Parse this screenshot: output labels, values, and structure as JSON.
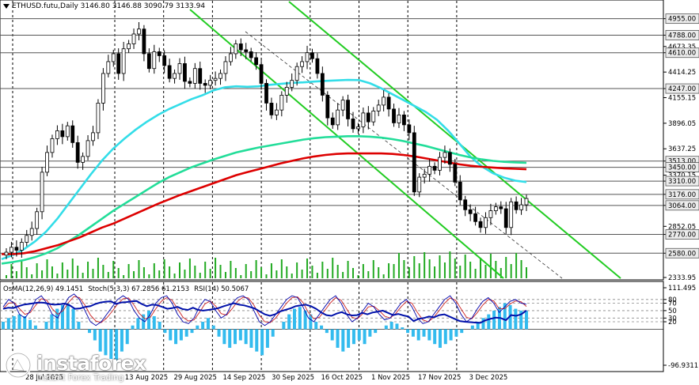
{
  "header": {
    "symbol_text": "ETHUSD.futu,Daily  3146.80 3146.88 3090.79 3133.94"
  },
  "oscillators": {
    "osma_label": "OsMA(12,26,9) 49.1451",
    "stoch_label": "Stoch(5,3,3) 67.2856 61.2153",
    "rsi_label": "RSI(14) 50.5067"
  },
  "logo": {
    "brand": "instaforex",
    "slogan": "Instant Forex Trading",
    "icon": "instaforex-logo-icon"
  },
  "colors": {
    "bull_candle": "#000000",
    "bear_candle": "#000000",
    "ema_fast": "#33dde8",
    "ema_mid": "#22dd99",
    "ema_slow": "#dd0000",
    "channel": "#22cc22",
    "volume": "#22aa22",
    "osma_hist": "#33bbee",
    "stoch_main": "#0000aa",
    "stoch_signal": "#cc2222",
    "rsi": "#0011aa"
  },
  "chart_data": {
    "type": "candlestick",
    "symbol": "ETHUSD.futu",
    "timeframe": "Daily",
    "ohlc_last": {
      "open": 3146.8,
      "high": 3146.88,
      "low": 3090.79,
      "close": 3133.94
    },
    "ylim": [
      2333.95,
      5000
    ],
    "y_tick_labels": [
      "4955.00",
      "4788.00",
      "4673.35",
      "4610.00",
      "4414.25",
      "4247.00",
      "4155.15",
      "3896.05",
      "3637.25",
      "3513.00",
      "3450.00",
      "3370.15",
      "3310.00",
      "3176.00",
      "3064.00",
      "2852.05",
      "2770.00",
      "2580.00",
      "2333.95"
    ],
    "y_tick_values": [
      4955,
      4788,
      4673.35,
      4610,
      4414.25,
      4247,
      4155.15,
      3896.05,
      3637.25,
      3513,
      3450,
      3370.15,
      3310,
      3176,
      3064,
      2852.05,
      2770,
      2580,
      2333.95
    ],
    "level_lines": [
      4955,
      4788,
      4610,
      4247,
      3513,
      3450,
      3310,
      3176,
      3064,
      2770,
      2580
    ],
    "x_labels": [
      "28 Jul 2025",
      "13 Aug 2025",
      "29 Aug 2025",
      "14 Sep 2025",
      "30 Sep 2025",
      "16 Oct 2025",
      "1 Nov 2025",
      "17 Nov 2025",
      "3 Dec 2025"
    ],
    "closes": [
      2590,
      2640,
      2610,
      2690,
      2760,
      2830,
      3000,
      3400,
      3600,
      3740,
      3820,
      3760,
      3870,
      3700,
      3500,
      3560,
      3720,
      3800,
      4100,
      4400,
      4520,
      4600,
      4400,
      4650,
      4700,
      4800,
      4850,
      4600,
      4450,
      4620,
      4580,
      4480,
      4350,
      4400,
      4500,
      4320,
      4300,
      4450,
      4300,
      4280,
      4330,
      4350,
      4400,
      4520,
      4600,
      4700,
      4640,
      4620,
      4560,
      4490,
      4300,
      4100,
      3980,
      4030,
      4180,
      4260,
      4330,
      4470,
      4520,
      4610,
      4550,
      4400,
      4180,
      3950,
      3880,
      4030,
      4130,
      3940,
      3840,
      3860,
      4000,
      3910,
      4020,
      4080,
      4160,
      4040,
      3900,
      3980,
      3880,
      3800,
      3200,
      3350,
      3380,
      3460,
      3420,
      3550,
      3600,
      3480,
      3300,
      3120,
      3020,
      2980,
      2900,
      2840,
      2940,
      3010,
      3050,
      3030,
      2840,
      3100,
      3020,
      3070,
      3133.94
    ],
    "series": [
      {
        "name": "",
        "kind": "ema_fast",
        "values": [
          2520,
          2560,
          2620,
          2700,
          2800,
          2930,
          3080,
          3230,
          3380,
          3520,
          3640,
          3740,
          3830,
          3910,
          3980,
          4040,
          4090,
          4140,
          4180,
          4230,
          4260,
          4270,
          4265,
          4270,
          4285,
          4295,
          4305,
          4310,
          4318,
          4325,
          4330,
          4335,
          4333,
          4300,
          4250,
          4190,
          4130,
          4070,
          4010,
          3930,
          3820,
          3690,
          3555,
          3460,
          3390,
          3345,
          3315,
          3300
        ]
      },
      {
        "name": "",
        "kind": "ema_mid",
        "values": [
          2475,
          2490,
          2510,
          2540,
          2580,
          2630,
          2700,
          2770,
          2850,
          2930,
          3010,
          3080,
          3150,
          3220,
          3290,
          3350,
          3400,
          3450,
          3490,
          3530,
          3565,
          3600,
          3625,
          3650,
          3670,
          3690,
          3710,
          3730,
          3745,
          3755,
          3760,
          3765,
          3765,
          3760,
          3750,
          3735,
          3715,
          3690,
          3665,
          3635,
          3605,
          3575,
          3550,
          3530,
          3515,
          3505,
          3500,
          3495
        ]
      },
      {
        "name": "",
        "kind": "ema_slow",
        "values": [
          2570,
          2570,
          2580,
          2600,
          2630,
          2660,
          2700,
          2740,
          2790,
          2840,
          2880,
          2930,
          2980,
          3030,
          3080,
          3125,
          3170,
          3210,
          3250,
          3290,
          3330,
          3370,
          3400,
          3430,
          3460,
          3490,
          3515,
          3540,
          3560,
          3575,
          3585,
          3590,
          3590,
          3590,
          3590,
          3585,
          3575,
          3560,
          3540,
          3520,
          3500,
          3480,
          3465,
          3455,
          3448,
          3440,
          3435,
          3430
        ]
      }
    ],
    "osc_ylim": [
      -96.9311,
      111.495
    ],
    "osc_tick_labels": [
      "111.495",
      "80",
      "70",
      "50",
      "30",
      "20",
      "-96.9311"
    ],
    "osc_tick_values": [
      111.495,
      80,
      70,
      50,
      30,
      20,
      -96.9311
    ],
    "osma_values": [
      20,
      30,
      35,
      40,
      35,
      25,
      10,
      0,
      20,
      40,
      55,
      65,
      70,
      55,
      20,
      0,
      -10,
      -30,
      -60,
      -70,
      -80,
      -90,
      -60,
      -40,
      10,
      30,
      40,
      50,
      35,
      20,
      -10,
      -30,
      -40,
      -30,
      -20,
      -10,
      10,
      20,
      30,
      10,
      -20,
      -40,
      -50,
      -40,
      -30,
      -40,
      -50,
      -60,
      -70,
      -50,
      -20,
      0,
      20,
      40,
      55,
      60,
      50,
      40,
      20,
      10,
      -10,
      -30,
      -50,
      -60,
      -50,
      -40,
      -30,
      -40,
      -20,
      -10,
      0,
      10,
      20,
      15,
      5,
      -10,
      -20,
      -30,
      -20,
      -30,
      -40,
      -50,
      -40,
      -30,
      -20,
      -10,
      0,
      10,
      20,
      30,
      40,
      50,
      60,
      70,
      65,
      55,
      50,
      49.1451
    ],
    "stoch_main": [
      60,
      80,
      70,
      40,
      30,
      50,
      80,
      90,
      70,
      40,
      30,
      60,
      85,
      95,
      80,
      50,
      20,
      10,
      20,
      40,
      60,
      80,
      90,
      80,
      50,
      30,
      20,
      40,
      70,
      85,
      90,
      70,
      40,
      20,
      15,
      30,
      60,
      80,
      75,
      50,
      30,
      40,
      70,
      85,
      90,
      80,
      50,
      20,
      10,
      20,
      40,
      60,
      80,
      90,
      85,
      60,
      30,
      20,
      40,
      60,
      80,
      90,
      70,
      40,
      20,
      30,
      50,
      70,
      60,
      40,
      25,
      30,
      50,
      70,
      80,
      60,
      30,
      15,
      20,
      40,
      60,
      80,
      90,
      70,
      40,
      20,
      30,
      55,
      75,
      85,
      70,
      45,
      60,
      75,
      80,
      70,
      67.2856
    ],
    "stoch_signal": [
      55,
      70,
      72,
      55,
      40,
      45,
      65,
      82,
      78,
      55,
      40,
      50,
      72,
      88,
      85,
      65,
      38,
      22,
      18,
      30,
      48,
      68,
      82,
      84,
      65,
      42,
      28,
      32,
      55,
      75,
      85,
      78,
      55,
      32,
      22,
      25,
      45,
      68,
      76,
      62,
      42,
      38,
      55,
      75,
      86,
      84,
      65,
      38,
      20,
      18,
      30,
      50,
      70,
      85,
      87,
      72,
      45,
      28,
      32,
      50,
      70,
      85,
      78,
      55,
      32,
      28,
      42,
      60,
      62,
      50,
      35,
      30,
      42,
      60,
      75,
      70,
      45,
      25,
      20,
      32,
      50,
      70,
      84,
      78,
      55,
      32,
      28,
      45,
      65,
      80,
      76,
      55,
      55,
      68,
      76,
      74,
      61.2153
    ],
    "rsi": [
      55,
      58,
      57,
      62,
      66,
      68,
      70,
      72,
      71,
      68,
      66,
      67,
      69,
      64,
      55,
      56,
      60,
      62,
      68,
      72,
      74,
      75,
      68,
      72,
      73,
      75,
      76,
      68,
      62,
      66,
      65,
      60,
      55,
      57,
      60,
      54,
      52,
      58,
      52,
      50,
      52,
      54,
      57,
      62,
      66,
      70,
      66,
      64,
      60,
      56,
      48,
      40,
      36,
      40,
      48,
      52,
      56,
      62,
      64,
      66,
      62,
      55,
      45,
      38,
      36,
      42,
      46,
      40,
      37,
      38,
      44,
      40,
      45,
      47,
      50,
      44,
      38,
      41,
      37,
      34,
      22,
      28,
      30,
      34,
      32,
      38,
      40,
      34,
      28,
      22,
      20,
      19,
      18,
      17,
      24,
      28,
      31,
      30,
      24,
      38,
      36,
      40,
      50.5067
    ]
  }
}
